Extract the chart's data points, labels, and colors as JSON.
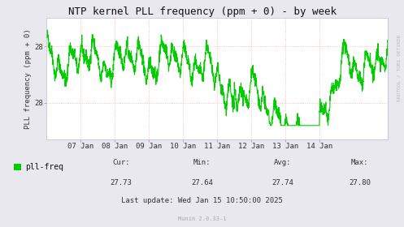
{
  "title": "NTP kernel PLL frequency (ppm + 0) - by week",
  "ylabel": "PLL frequency (ppm + 0)",
  "bg_color": "#e8e8ee",
  "plot_bg_color": "#ffffff",
  "line_color": "#00cc00",
  "grid_color": "#ffaaaa",
  "ytick_labels": [
    "28",
    "28"
  ],
  "ytick_positions": [
    27.88,
    27.68
  ],
  "ylim": [
    27.55,
    27.98
  ],
  "xlim_start": 1736121600,
  "xlim_end": 1736985600,
  "xtick_positions": [
    1736208000,
    1736294400,
    1736380800,
    1736467200,
    1736553600,
    1736640000,
    1736726400,
    1736812800
  ],
  "xtick_labels": [
    "07 Jan",
    "08 Jan",
    "09 Jan",
    "10 Jan",
    "11 Jan",
    "12 Jan",
    "13 Jan",
    "14 Jan"
  ],
  "vgrid_positions": [
    1736208000,
    1736294400,
    1736380800,
    1736467200,
    1736553600,
    1736640000,
    1736726400,
    1736812800
  ],
  "legend_label": "pll-freq",
  "legend_color": "#00cc00",
  "cur_val": "27.73",
  "min_val": "27.64",
  "avg_val": "27.74",
  "max_val": "27.80",
  "last_update": "Last update: Wed Jan 15 10:50:00 2025",
  "munin_text": "Munin 2.0.33-1",
  "rrdtool_text": "RRDTOOL / TOBI OETIKER",
  "title_fontsize": 9,
  "axis_fontsize": 6.5,
  "legend_fontsize": 7,
  "stats_fontsize": 6.5
}
